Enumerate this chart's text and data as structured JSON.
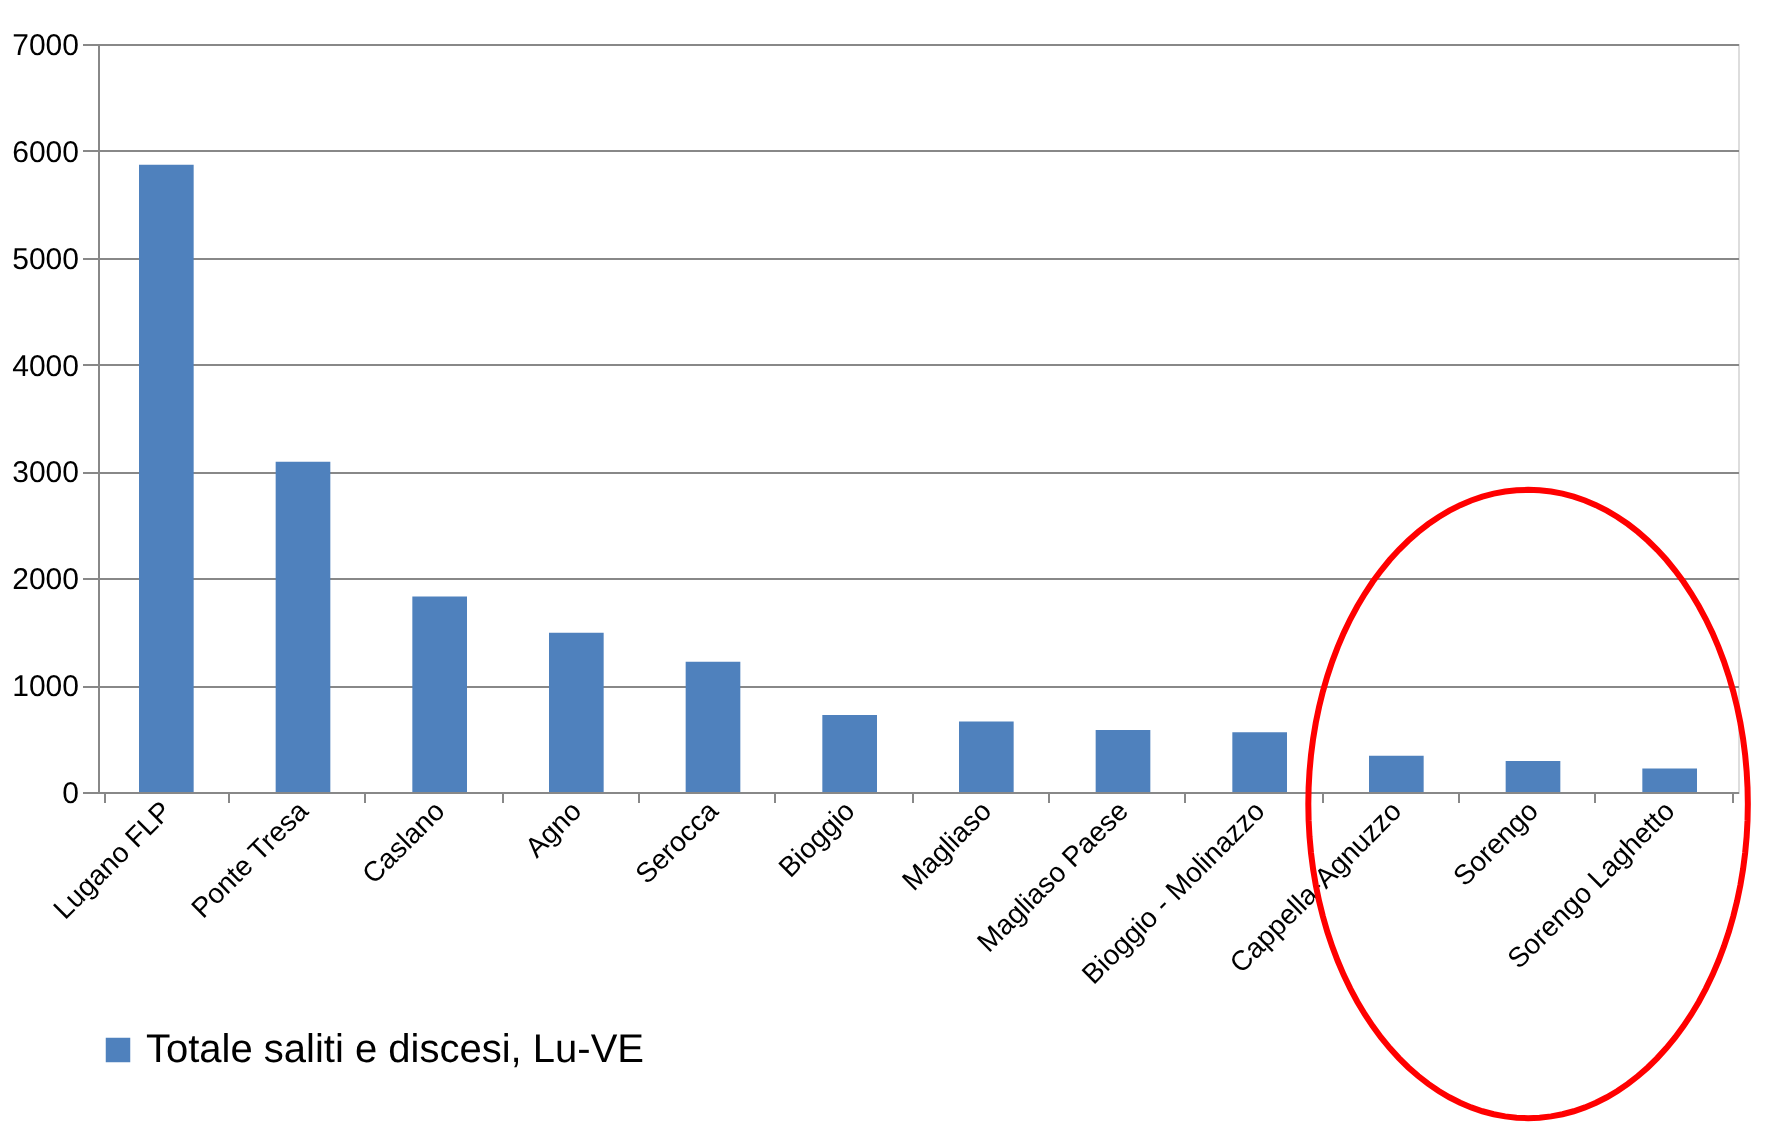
{
  "chart_data": {
    "type": "bar",
    "categories": [
      "Lugano FLP",
      "Ponte Tresa",
      "Caslano",
      "Agno",
      "Serocca",
      "Bioggio",
      "Magliaso",
      "Magliaso Paese",
      "Bioggio - Molinazzo",
      "Cappella-Agnuzzo",
      "Sorengo",
      "Sorengo Laghetto"
    ],
    "series": [
      {
        "name": "Totale saliti e discesi, Lu-VE",
        "color": "#4f81bd",
        "values": [
          5870,
          3090,
          1830,
          1490,
          1220,
          720,
          660,
          580,
          560,
          340,
          290,
          220
        ]
      }
    ],
    "ylim": [
      0,
      7000
    ],
    "yticks": [
      0,
      1000,
      2000,
      3000,
      4000,
      5000,
      6000,
      7000
    ],
    "grid": "y",
    "legend": "bottom"
  }
}
